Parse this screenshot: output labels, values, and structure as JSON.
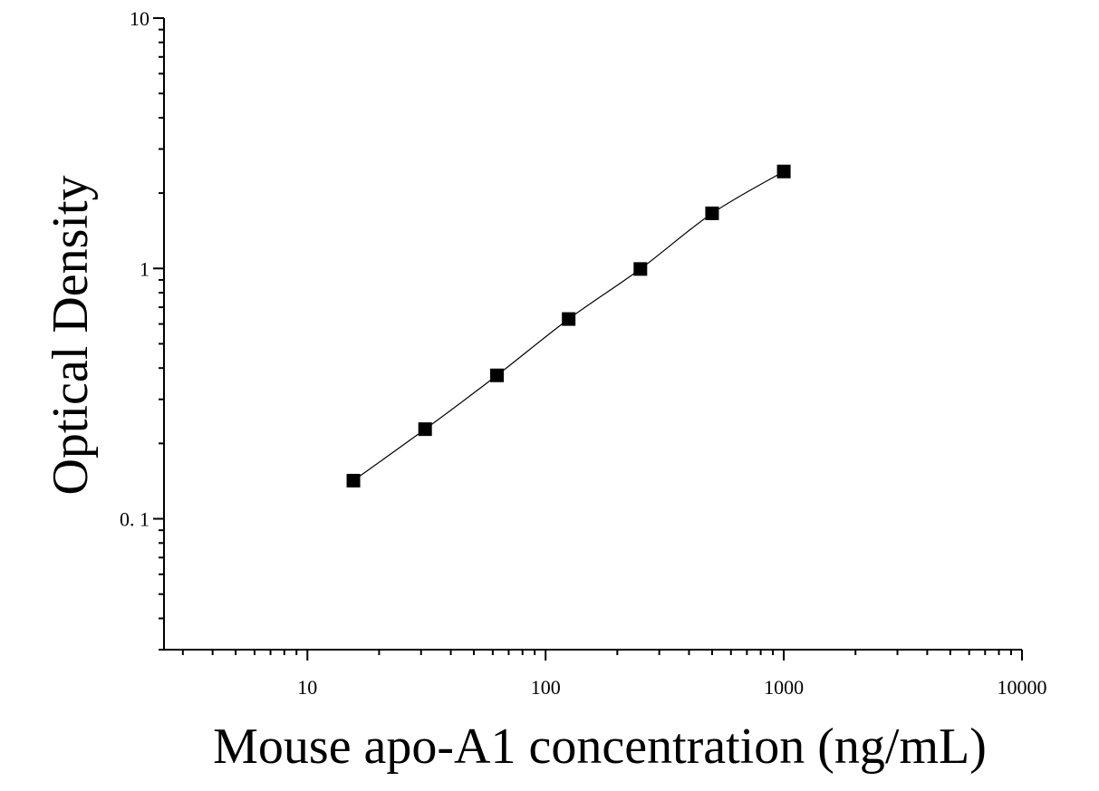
{
  "chart_data": {
    "type": "scatter",
    "title": "",
    "xlabel": "Mouse apo-A1 concentration (ng/mL)",
    "ylabel": "Optical Density",
    "x_scale": "log",
    "y_scale": "log",
    "xlim": [
      2.5,
      10000
    ],
    "ylim": [
      0.03,
      10
    ],
    "x_ticks": [
      {
        "value": 10,
        "label": "10"
      },
      {
        "value": 100,
        "label": "100"
      },
      {
        "value": 1000,
        "label": "1000"
      },
      {
        "value": 10000,
        "label": "10000"
      }
    ],
    "y_ticks": [
      {
        "value": 0.1,
        "label": "0. 1"
      },
      {
        "value": 1,
        "label": "1"
      },
      {
        "value": 10,
        "label": "10"
      }
    ],
    "grid": false,
    "legend": "none",
    "marker": "square",
    "color": "#000000",
    "points": [
      {
        "x": 15.6,
        "y": 0.142
      },
      {
        "x": 31.2,
        "y": 0.228
      },
      {
        "x": 62.5,
        "y": 0.374
      },
      {
        "x": 125,
        "y": 0.628
      },
      {
        "x": 250,
        "y": 0.995
      },
      {
        "x": 500,
        "y": 1.66
      },
      {
        "x": 1000,
        "y": 2.44
      }
    ],
    "fit_curve": true
  }
}
